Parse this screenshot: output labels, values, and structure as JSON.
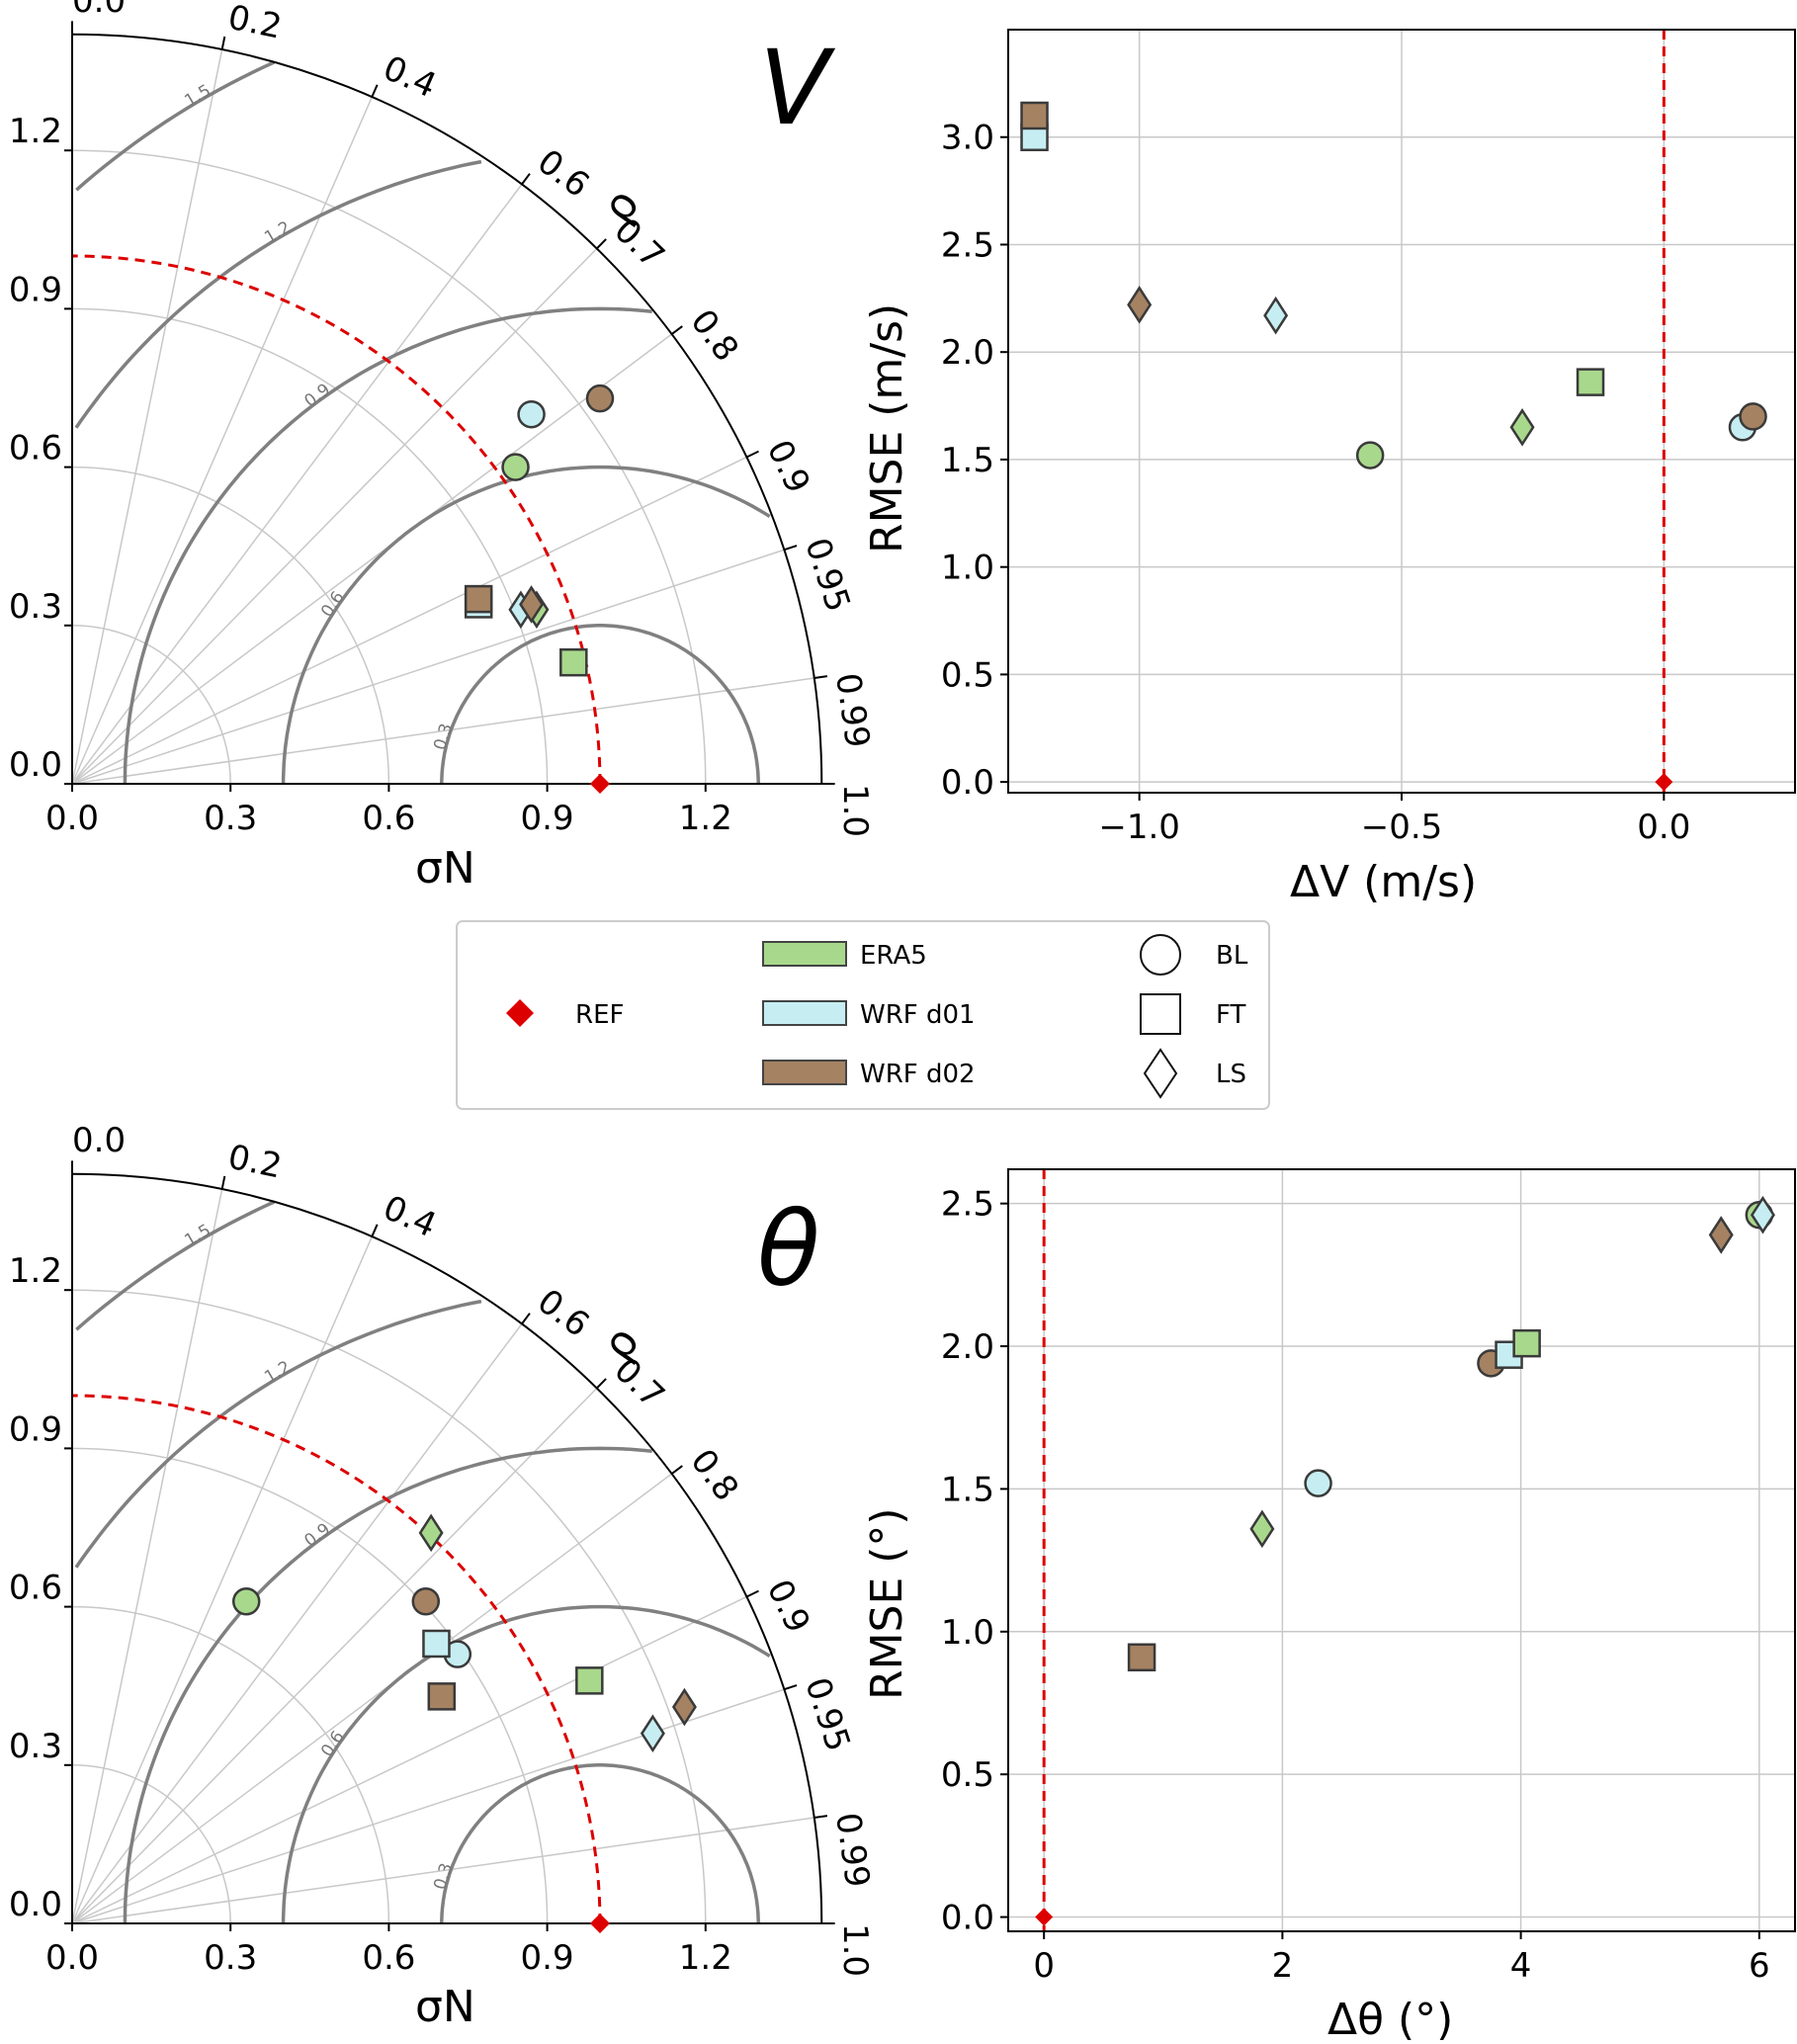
{
  "legend": {
    "ref_label": "REF",
    "datasets": [
      {
        "name": "ERA5",
        "color": "#a8d88c"
      },
      {
        "name": "WRF d01",
        "color": "#c6eef2"
      },
      {
        "name": "WRF d02",
        "color": "#a58262"
      }
    ],
    "shapes": [
      {
        "name": "BL",
        "marker": "circle"
      },
      {
        "name": "FT",
        "marker": "square"
      },
      {
        "name": "LS",
        "marker": "diamond"
      }
    ]
  },
  "colors": {
    "ERA5": "#a8d88c",
    "WRF d01": "#c6eef2",
    "WRF d02": "#a58262",
    "ref": "#dd0000"
  },
  "chart_data": [
    {
      "type": "taylor",
      "id": "V-taylor",
      "big_label": "V",
      "xlabel": "σN",
      "corr_label": "ρ",
      "ticks": [
        "0.0",
        "0.3",
        "0.6",
        "0.9",
        "1.2"
      ],
      "corr_ticks": [
        "0.0",
        "0.2",
        "0.4",
        "0.6",
        "0.7",
        "0.8",
        "0.9",
        "0.95",
        "0.99",
        "1.0"
      ],
      "rms_labels": [
        "0.3",
        "0.6",
        "0.9",
        "1.2",
        "1.5"
      ],
      "ref": {
        "std": 1.0,
        "corr": 1.0
      },
      "points": [
        {
          "dataset": "ERA5",
          "shape": "BL",
          "x": 0.84,
          "y": 0.6
        },
        {
          "dataset": "WRF d01",
          "shape": "BL",
          "x": 0.87,
          "y": 0.7
        },
        {
          "dataset": "WRF d02",
          "shape": "BL",
          "x": 1.0,
          "y": 0.73
        },
        {
          "dataset": "ERA5",
          "shape": "FT",
          "x": 0.95,
          "y": 0.23
        },
        {
          "dataset": "WRF d01",
          "shape": "FT",
          "x": 0.77,
          "y": 0.34
        },
        {
          "dataset": "WRF d02",
          "shape": "FT",
          "x": 0.77,
          "y": 0.35
        },
        {
          "dataset": "ERA5",
          "shape": "LS",
          "x": 0.88,
          "y": 0.33
        },
        {
          "dataset": "WRF d01",
          "shape": "LS",
          "x": 0.85,
          "y": 0.33
        },
        {
          "dataset": "WRF d02",
          "shape": "LS",
          "x": 0.87,
          "y": 0.34
        }
      ]
    },
    {
      "type": "scatter",
      "id": "V-scatter",
      "xlabel": "ΔV (m/s)",
      "ylabel": "RMSE (m/s)",
      "xlim": [
        -1.25,
        0.25
      ],
      "ylim": [
        -0.05,
        3.5
      ],
      "xticks": [
        -1.0,
        -0.5,
        0.0
      ],
      "xtick_labels": [
        "−1.0",
        "−0.5",
        "0.0"
      ],
      "yticks": [
        0.0,
        0.5,
        1.0,
        1.5,
        2.0,
        2.5,
        3.0
      ],
      "yticklabels": [
        "0.0",
        "0.5",
        "1.0",
        "1.5",
        "2.0",
        "2.5",
        "3.0"
      ],
      "ref": {
        "x": 0.0,
        "y": 0.0
      },
      "ref_line": "vertical-at-0",
      "grid": true,
      "points": [
        {
          "dataset": "WRF d01",
          "shape": "FT",
          "x": -1.2,
          "y": 3.0
        },
        {
          "dataset": "WRF d02",
          "shape": "FT",
          "x": -1.2,
          "y": 3.1
        },
        {
          "dataset": "WRF d02",
          "shape": "LS",
          "x": -1.0,
          "y": 2.22
        },
        {
          "dataset": "WRF d01",
          "shape": "LS",
          "x": -0.74,
          "y": 2.17
        },
        {
          "dataset": "ERA5",
          "shape": "BL",
          "x": -0.56,
          "y": 1.52
        },
        {
          "dataset": "ERA5",
          "shape": "LS",
          "x": -0.27,
          "y": 1.65
        },
        {
          "dataset": "ERA5",
          "shape": "FT",
          "x": -0.14,
          "y": 1.86
        },
        {
          "dataset": "WRF d01",
          "shape": "BL",
          "x": 0.15,
          "y": 1.65
        },
        {
          "dataset": "WRF d02",
          "shape": "BL",
          "x": 0.17,
          "y": 1.7
        }
      ]
    },
    {
      "type": "taylor",
      "id": "theta-taylor",
      "big_label": "θ",
      "xlabel": "σN",
      "corr_label": "ρ",
      "ticks": [
        "0.0",
        "0.3",
        "0.6",
        "0.9",
        "1.2"
      ],
      "corr_ticks": [
        "0.0",
        "0.2",
        "0.4",
        "0.6",
        "0.7",
        "0.8",
        "0.9",
        "0.95",
        "0.99",
        "1.0"
      ],
      "rms_labels": [
        "0.3",
        "0.6",
        "0.9",
        "1.2",
        "1.5"
      ],
      "ref": {
        "std": 1.0,
        "corr": 1.0
      },
      "points": [
        {
          "dataset": "ERA5",
          "shape": "BL",
          "x": 0.33,
          "y": 0.61
        },
        {
          "dataset": "WRF d01",
          "shape": "BL",
          "x": 0.73,
          "y": 0.51
        },
        {
          "dataset": "WRF d02",
          "shape": "BL",
          "x": 0.67,
          "y": 0.61
        },
        {
          "dataset": "ERA5",
          "shape": "FT",
          "x": 0.98,
          "y": 0.46
        },
        {
          "dataset": "WRF d01",
          "shape": "FT",
          "x": 0.69,
          "y": 0.53
        },
        {
          "dataset": "WRF d02",
          "shape": "FT",
          "x": 0.7,
          "y": 0.43
        },
        {
          "dataset": "ERA5",
          "shape": "LS",
          "x": 0.68,
          "y": 0.74
        },
        {
          "dataset": "WRF d01",
          "shape": "LS",
          "x": 1.1,
          "y": 0.36
        },
        {
          "dataset": "WRF d02",
          "shape": "LS",
          "x": 1.16,
          "y": 0.41
        }
      ]
    },
    {
      "type": "scatter",
      "id": "theta-scatter",
      "xlabel": "Δθ (°)",
      "ylabel": "RMSE (°)",
      "xlim": [
        -0.3,
        6.3
      ],
      "ylim": [
        -0.05,
        2.62
      ],
      "xticks": [
        0,
        2,
        4,
        6
      ],
      "xtick_labels": [
        "0",
        "2",
        "4",
        "6"
      ],
      "yticks": [
        0.0,
        0.5,
        1.0,
        1.5,
        2.0,
        2.5
      ],
      "yticklabels": [
        "0.0",
        "0.5",
        "1.0",
        "1.5",
        "2.0",
        "2.5"
      ],
      "ref": {
        "x": 0.0,
        "y": 0.0
      },
      "ref_line": "vertical-at-0",
      "grid": true,
      "points": [
        {
          "dataset": "WRF d02",
          "shape": "FT",
          "x": 0.82,
          "y": 0.91
        },
        {
          "dataset": "ERA5",
          "shape": "LS",
          "x": 1.83,
          "y": 1.36
        },
        {
          "dataset": "WRF d01",
          "shape": "BL",
          "x": 2.3,
          "y": 1.52
        },
        {
          "dataset": "WRF d02",
          "shape": "BL",
          "x": 3.75,
          "y": 1.94
        },
        {
          "dataset": "WRF d01",
          "shape": "FT",
          "x": 3.9,
          "y": 1.97
        },
        {
          "dataset": "ERA5",
          "shape": "FT",
          "x": 4.05,
          "y": 2.01
        },
        {
          "dataset": "WRF d02",
          "shape": "LS",
          "x": 5.68,
          "y": 2.39
        },
        {
          "dataset": "ERA5",
          "shape": "BL",
          "x": 6.0,
          "y": 2.46
        },
        {
          "dataset": "WRF d01",
          "shape": "LS",
          "x": 6.03,
          "y": 2.46
        }
      ]
    }
  ]
}
